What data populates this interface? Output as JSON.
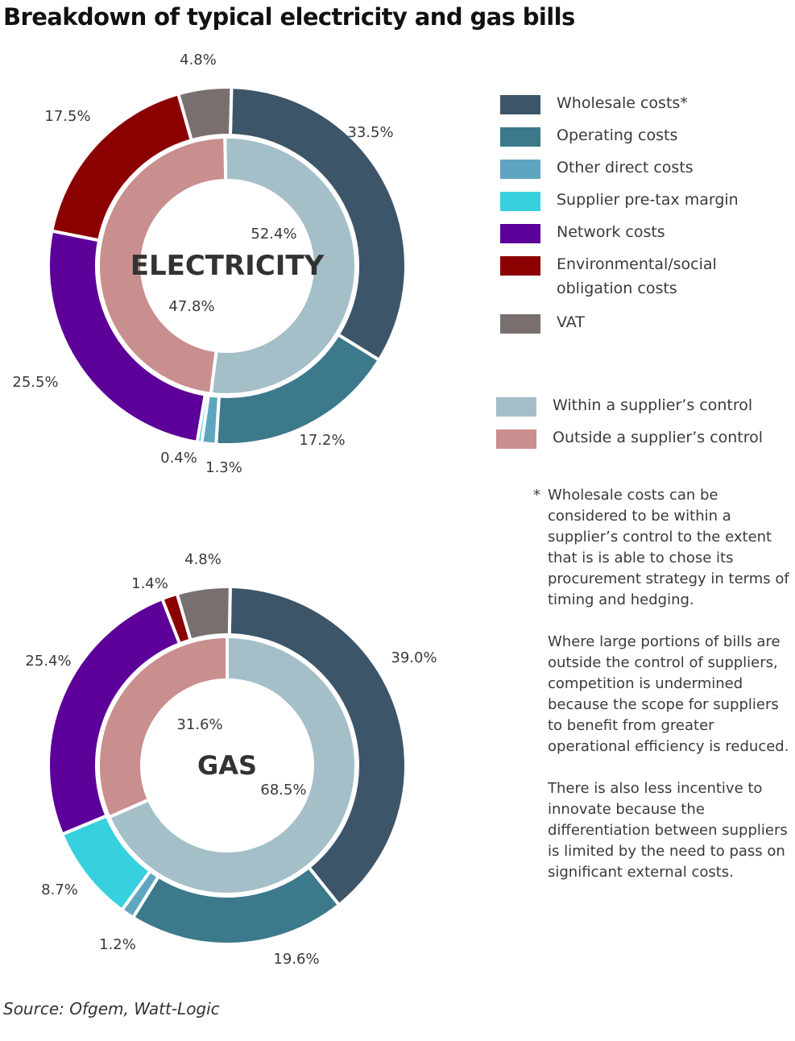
{
  "title": "Breakdown of typical electricity and gas bills",
  "source": "Source: Ofgem, Watt-Logic",
  "colors": {
    "wholesale": "#3d5569",
    "operating": "#3c798b",
    "other_direct": "#5ea6bf",
    "margin": "#36d0df",
    "network": "#5c0099",
    "environmental": "#8b0000",
    "vat": "#7a6f6f",
    "within": "#a4bfc8",
    "outside": "#c98e8e"
  },
  "legend": {
    "items": [
      {
        "label": "Wholesale costs*",
        "color": "#3d5569"
      },
      {
        "label": "Operating costs",
        "color": "#3c798b"
      },
      {
        "label": "Other direct costs",
        "color": "#5ea6bf"
      },
      {
        "label": "Supplier pre-tax margin",
        "color": "#36d0df"
      },
      {
        "label": "Network costs",
        "color": "#5c0099"
      },
      {
        "label": "Environmental/social obligation costs",
        "color": "#8b0000"
      },
      {
        "label": "VAT",
        "color": "#7a6f6f"
      }
    ],
    "control_items": [
      {
        "label": "Within a supplier’s control",
        "color": "#a4bfc8"
      },
      {
        "label": "Outside a supplier’s control",
        "color": "#c98e8e"
      }
    ]
  },
  "notes": {
    "star": "*",
    "footnote": "Wholesale costs can be considered to be within a supplier’s control to the extent that is is able to chose its procurement strategy in terms of timing and hedging.",
    "paragraph_1": "Where large portions of bills are outside the control of suppliers, competition is undermined because the scope for suppliers to benefit from greater operational efficiency is reduced.",
    "paragraph_2": "There is also less incentive to innovate because the differentiation between suppliers is limited by the need to pass on significant external costs."
  },
  "chart_data": [
    {
      "type": "pie",
      "subtype": "nested-donut",
      "title": "ELECTRICITY",
      "outer_ring": {
        "categories": [
          "Wholesale costs*",
          "Operating costs",
          "Other direct costs",
          "Supplier pre-tax margin",
          "Network costs",
          "Environmental/social obligation costs",
          "VAT"
        ],
        "values": [
          33.5,
          17.2,
          1.3,
          0.4,
          25.5,
          17.5,
          4.8
        ],
        "labels": [
          "33.5%",
          "17.2%",
          "1.3%",
          "0.4%",
          "25.5%",
          "17.5%",
          "4.8%"
        ],
        "colors": [
          "#3d5569",
          "#3c798b",
          "#5ea6bf",
          "#36d0df",
          "#5c0099",
          "#8b0000",
          "#7a6f6f"
        ]
      },
      "inner_ring": {
        "categories": [
          "Within a supplier’s control",
          "Outside a supplier’s control"
        ],
        "values": [
          52.4,
          47.8
        ],
        "labels": [
          "52.4%",
          "47.8%"
        ],
        "colors": [
          "#a4bfc8",
          "#c98e8e"
        ]
      },
      "legend": "right"
    },
    {
      "type": "pie",
      "subtype": "nested-donut",
      "title": "GAS",
      "outer_ring": {
        "categories": [
          "Wholesale costs*",
          "Operating costs",
          "Other direct costs",
          "Supplier pre-tax margin",
          "Network costs",
          "Environmental/social obligation costs",
          "VAT"
        ],
        "values": [
          39.0,
          19.6,
          1.2,
          8.7,
          25.4,
          1.4,
          4.8
        ],
        "labels": [
          "39.0%",
          "19.6%",
          "1.2%",
          "8.7%",
          "25.4%",
          "1.4%",
          "4.8%"
        ],
        "colors": [
          "#3d5569",
          "#3c798b",
          "#5ea6bf",
          "#36d0df",
          "#5c0099",
          "#8b0000",
          "#7a6f6f"
        ]
      },
      "inner_ring": {
        "categories": [
          "Within a supplier’s control",
          "Outside a supplier’s control"
        ],
        "values": [
          68.5,
          31.6
        ],
        "labels": [
          "68.5%",
          "31.6%"
        ],
        "colors": [
          "#a4bfc8",
          "#c98e8e"
        ]
      },
      "legend": "right"
    }
  ]
}
